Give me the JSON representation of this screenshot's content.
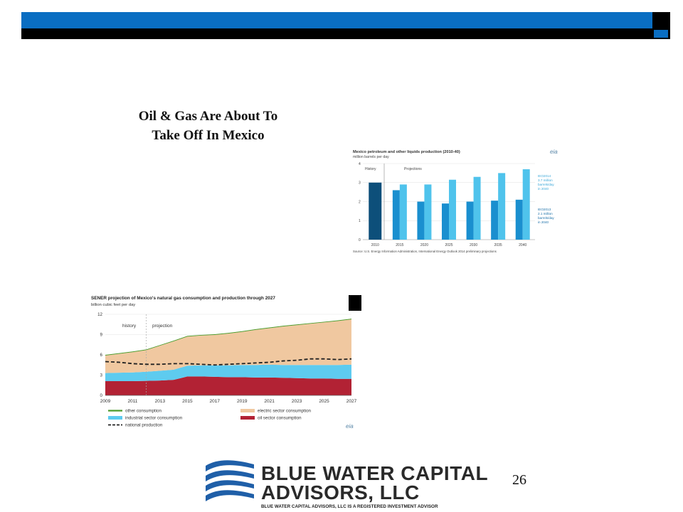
{
  "slide": {
    "title_line1": "Oil & Gas Are About To",
    "title_line2": "Take Off In Mexico",
    "page_number": "26"
  },
  "logo": {
    "name_line1": "BLUE WATER CAPITAL",
    "name_line2": "ADVISORS, LLC",
    "tagline": "BLUE WATER CAPITAL ADVISORS, LLC IS A REGISTERED INVESTMENT ADVISOR"
  },
  "colors": {
    "header_blue": "#0a6ec2",
    "header_black": "#000000"
  },
  "chart_data": [
    {
      "type": "bar",
      "title": "Mexico petroleum and other liquids production (2010-40)",
      "subtitle": "million barrels per day",
      "ylim": [
        0,
        4
      ],
      "yticks": [
        "0",
        "1",
        "2",
        "3",
        "4"
      ],
      "categories": [
        "2010",
        "2015",
        "2020",
        "2025",
        "2030",
        "2035",
        "2040"
      ],
      "series": [
        {
          "name": "IEO2013",
          "values": [
            3.0,
            2.6,
            2.0,
            1.9,
            2.0,
            2.05,
            2.1
          ],
          "color": "#1a8fcf"
        },
        {
          "name": "IEO2014",
          "values": [
            null,
            2.9,
            2.9,
            3.15,
            3.3,
            3.5,
            3.7
          ],
          "color": "#4fc3ec"
        }
      ],
      "history_color": "#0d4f7a",
      "region_labels": [
        "History",
        "Projections"
      ],
      "annotation_ieo2014": [
        "IEO2014",
        "3.7 million",
        "barrels/day",
        "in 2040"
      ],
      "annotation_ieo2013": [
        "IEO2013",
        "2.1 million",
        "barrels/day",
        "in 2040"
      ],
      "logo_text": "eia",
      "source": "Source: U.S. Energy Information Administration, International Energy Outlook 2014 preliminary projections"
    },
    {
      "type": "area",
      "title": "SENER  projection of Mexico's natural gas consumption  and production through 2027",
      "subtitle": "billion cubic feet per day",
      "ylim": [
        0,
        12
      ],
      "yticks": [
        "0",
        "3",
        "6",
        "9",
        "12"
      ],
      "x": [
        2009,
        2010,
        2011,
        2012,
        2013,
        2014,
        2015,
        2016,
        2017,
        2018,
        2019,
        2020,
        2021,
        2022,
        2023,
        2024,
        2025,
        2026,
        2027
      ],
      "xtick_labels": [
        "2009",
        "2011",
        "2013",
        "2015",
        "2017",
        "2019",
        "2021",
        "2023",
        "2025",
        "2027"
      ],
      "region_labels": [
        "history",
        "projection"
      ],
      "stack_series": [
        {
          "name": "oil sector consumption",
          "color": "#b22234",
          "values": [
            2.1,
            2.1,
            2.1,
            2.15,
            2.2,
            2.3,
            2.8,
            2.8,
            2.75,
            2.7,
            2.7,
            2.65,
            2.65,
            2.6,
            2.55,
            2.5,
            2.5,
            2.45,
            2.45
          ]
        },
        {
          "name": "industrial sector consumption",
          "color": "#5ecbef",
          "values": [
            1.2,
            1.25,
            1.3,
            1.35,
            1.45,
            1.5,
            1.6,
            1.65,
            1.7,
            1.75,
            1.8,
            1.85,
            1.9,
            1.9,
            1.95,
            2.0,
            2.0,
            2.05,
            2.1
          ]
        },
        {
          "name": "electric sector consumption",
          "color": "#f0c8a0",
          "values": [
            2.6,
            2.8,
            3.0,
            3.2,
            3.7,
            4.2,
            4.3,
            4.4,
            4.5,
            4.7,
            4.9,
            5.2,
            5.4,
            5.7,
            5.9,
            6.1,
            6.3,
            6.5,
            6.7
          ]
        },
        {
          "name": "other consumption",
          "color": "#4d9a2a",
          "values": [
            0.1,
            0.1,
            0.1,
            0.1,
            0.1,
            0.1,
            0.1,
            0.1,
            0.1,
            0.1,
            0.1,
            0.1,
            0.1,
            0.1,
            0.1,
            0.1,
            0.1,
            0.1,
            0.1
          ]
        }
      ],
      "line_series": {
        "name": "national production",
        "values": [
          5.0,
          4.9,
          4.7,
          4.6,
          4.6,
          4.7,
          4.7,
          4.6,
          4.5,
          4.6,
          4.7,
          4.8,
          4.9,
          5.1,
          5.2,
          5.4,
          5.4,
          5.3,
          5.4
        ]
      },
      "legend_placement": "bottom",
      "logo_text": "eia"
    }
  ]
}
